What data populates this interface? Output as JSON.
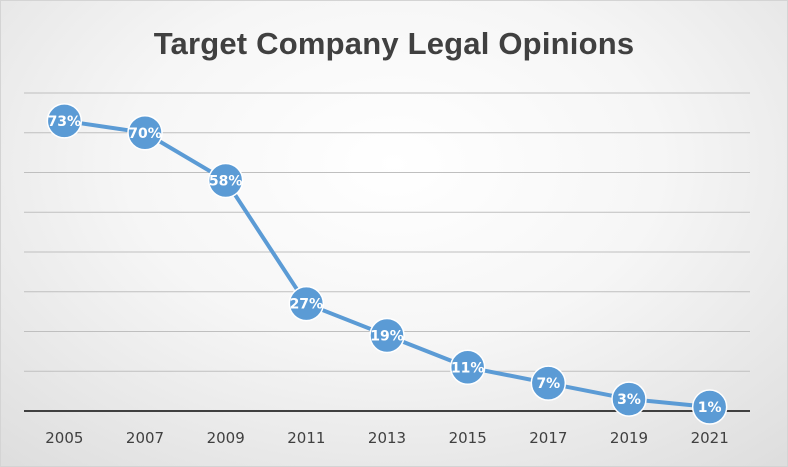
{
  "chart_data": {
    "type": "line",
    "title": "Target Company Legal Opinions",
    "categories": [
      "2005",
      "2007",
      "2009",
      "2011",
      "2013",
      "2015",
      "2017",
      "2019",
      "2021"
    ],
    "values": [
      73,
      70,
      58,
      27,
      19,
      11,
      7,
      3,
      1
    ],
    "data_labels": [
      "73%",
      "70%",
      "58%",
      "27%",
      "19%",
      "11%",
      "7%",
      "3%",
      "1%"
    ],
    "ylim": [
      0,
      80
    ],
    "y_gridline_step": 10,
    "grid": true,
    "legend": "none",
    "colors": {
      "line": "#5b9bd5",
      "marker": "#5b9bd5",
      "gridline": "#bfbfbf",
      "axis": "#404040"
    }
  }
}
